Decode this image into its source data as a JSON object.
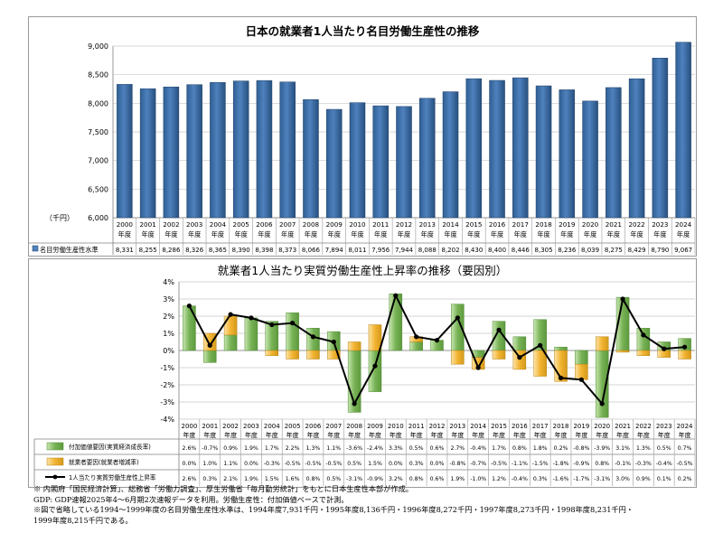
{
  "chart_data": [
    {
      "type": "bar",
      "title": "日本の就業者1人当たり名目労働生産性の推移",
      "unit_label": "（千円）",
      "ylim": [
        6000,
        9000
      ],
      "yticks": [
        "6,000",
        "6,500",
        "7,000",
        "7,500",
        "8,000",
        "8,500",
        "9,000"
      ],
      "grid": true,
      "bar_color": "#4f81bd",
      "categories": [
        "2000",
        "2001",
        "2002",
        "2003",
        "2004",
        "2005",
        "2006",
        "2007",
        "2008",
        "2009",
        "2010",
        "2011",
        "2012",
        "2013",
        "2014",
        "2015",
        "2016",
        "2017",
        "2018",
        "2019",
        "2020",
        "2021",
        "2022",
        "2023",
        "2024"
      ],
      "category_suffix": "年度",
      "series": [
        {
          "name": "名目労働生産性水準",
          "values": [
            8331,
            8255,
            8286,
            8326,
            8365,
            8390,
            8398,
            8373,
            8066,
            7894,
            8011,
            7956,
            7944,
            8088,
            8202,
            8430,
            8400,
            8446,
            8305,
            8236,
            8039,
            8275,
            8429,
            8790,
            9067
          ],
          "labels": [
            "8,331",
            "8,255",
            "8,286",
            "8,326",
            "8,365",
            "8,390",
            "8,398",
            "8,373",
            "8,066",
            "7,894",
            "8,011",
            "7,956",
            "7,944",
            "8,088",
            "8,202",
            "8,430",
            "8,400",
            "8,446",
            "8,305",
            "8,236",
            "8,039",
            "8,275",
            "8,429",
            "8,790",
            "9,067"
          ]
        }
      ]
    },
    {
      "type": "bar",
      "title": "就業者1人当たり実質労働生産性上昇率の推移（要因別）",
      "ylim": [
        -4,
        4
      ],
      "yticks": [
        "4%",
        "3%",
        "2%",
        "1%",
        "0%",
        "-1%",
        "-2%",
        "-3%",
        "-4%"
      ],
      "grid": true,
      "legend_placement": "bottom table",
      "categories": [
        "2000",
        "2001",
        "2002",
        "2003",
        "2004",
        "2005",
        "2006",
        "2007",
        "2008",
        "2009",
        "2010",
        "2011",
        "2012",
        "2013",
        "2014",
        "2015",
        "2016",
        "2017",
        "2018",
        "2019",
        "2020",
        "2021",
        "2022",
        "2023",
        "2024"
      ],
      "category_suffix": "年度",
      "series": [
        {
          "name": "付加価値要因(実質経済成長率)",
          "kind": "bar",
          "color": "#77b255",
          "values": [
            2.6,
            -0.7,
            0.9,
            1.9,
            1.7,
            2.2,
            1.3,
            1.1,
            -3.6,
            -2.4,
            3.3,
            0.5,
            0.6,
            2.7,
            -0.4,
            1.7,
            0.8,
            1.8,
            0.2,
            -0.8,
            -3.9,
            3.1,
            1.3,
            0.5,
            0.7
          ],
          "labels": [
            "2.6%",
            "-0.7%",
            "0.9%",
            "1.9%",
            "1.7%",
            "2.2%",
            "1.3%",
            "1.1%",
            "-3.6%",
            "-2.4%",
            "3.3%",
            "0.5%",
            "0.6%",
            "2.7%",
            "-0.4%",
            "1.7%",
            "0.8%",
            "1.8%",
            "0.2%",
            "-0.8%",
            "-3.9%",
            "3.1%",
            "1.3%",
            "0.5%",
            "0.7%"
          ]
        },
        {
          "name": "就業者要因(就業者増減率)",
          "kind": "bar",
          "color": "#f2b330",
          "values": [
            0.0,
            1.0,
            1.1,
            0.0,
            -0.3,
            -0.5,
            -0.5,
            -0.5,
            0.5,
            1.5,
            0.0,
            0.3,
            0.0,
            -0.8,
            -0.7,
            -0.5,
            -1.1,
            -1.5,
            -1.8,
            -0.9,
            0.8,
            -0.1,
            -0.3,
            -0.4,
            -0.5
          ],
          "labels": [
            "0.0%",
            "1.0%",
            "1.1%",
            "0.0%",
            "-0.3%",
            "-0.5%",
            "-0.5%",
            "-0.5%",
            "0.5%",
            "1.5%",
            "0.0%",
            "0.3%",
            "0.0%",
            "-0.8%",
            "-0.7%",
            "-0.5%",
            "-1.1%",
            "-1.5%",
            "-1.8%",
            "-0.9%",
            "0.8%",
            "-0.1%",
            "-0.3%",
            "-0.4%",
            "-0.5%"
          ]
        },
        {
          "name": "1人当たり実質労働生産性上昇率",
          "kind": "line",
          "color": "#000000",
          "values": [
            2.6,
            0.3,
            2.1,
            1.9,
            1.5,
            1.6,
            0.8,
            0.5,
            -3.1,
            -0.9,
            3.2,
            0.8,
            0.6,
            1.9,
            -1.0,
            1.2,
            -0.4,
            0.3,
            -1.6,
            -1.7,
            -3.1,
            3.0,
            0.9,
            0.1,
            0.2
          ],
          "labels": [
            "2.6%",
            "0.3%",
            "2.1%",
            "1.9%",
            "1.5%",
            "1.6%",
            "0.8%",
            "0.5%",
            "-3.1%",
            "-0.9%",
            "3.2%",
            "0.8%",
            "0.6%",
            "1.9%",
            "-1.0%",
            "1.2%",
            "-0.4%",
            "0.3%",
            "-1.6%",
            "-1.7%",
            "-3.1%",
            "3.0%",
            "0.9%",
            "0.1%",
            "0.2%"
          ]
        }
      ]
    }
  ],
  "notes": [
    "※ 内閣府「国民経済計算」、総務省「労働力調査」、厚生労働省「毎月勤労統計」をもとに日本生産性本部が作成。",
    "GDP: GDP速報2025年4～6月期2次速報データを利用。労働生産性：付加価値ベースで計測。",
    "※図で省略している1994～1999年度の名目労働生産性水準は、1994年度7,931千円・1995年度8,136千円・1996年度8,272千円・1997年度8,273千円・1998年度8,231千円・",
    "1999年度8,215千円である。"
  ]
}
